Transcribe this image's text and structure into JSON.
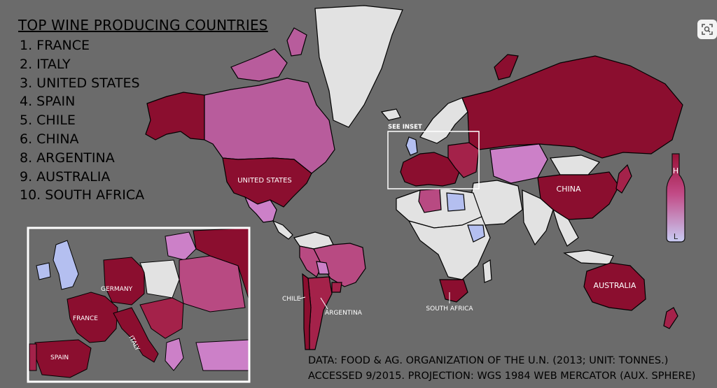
{
  "title": "TOP WINE PRODUCING COUNTRIES",
  "ranking": [
    "1. FRANCE",
    "2. ITALY",
    "3. UNITED STATES",
    "4. SPAIN",
    "5. CHILE",
    "6. CHINA",
    "8. ARGENTINA",
    "9. AUSTRALIA",
    "10. SOUTH AFRICA"
  ],
  "map_labels": {
    "united_states": "UNITED STATES",
    "china": "CHINA",
    "australia": "AUSTRALIA",
    "chile": "CHILE",
    "argentina": "ARGENTINA",
    "south_africa": "SOUTH AFRICA",
    "see_inset": "SEE INSET"
  },
  "inset_labels": {
    "germany": "GERMANY",
    "france": "FRANCE",
    "italy": "ITALY",
    "spain": "SPAIN"
  },
  "legend": {
    "high": "H",
    "low": "L"
  },
  "footer": {
    "line1": "DATA: FOOD & AG. ORGANIZATION OF THE U.N. (2013; UNIT: TONNES.)",
    "line2": "ACCESSED 9/2015. PROJECTION: WGS 1984 WEB MERCATOR (AUX. SPHERE)"
  },
  "colors": {
    "background": "#6b6b6b",
    "highest": "#8b0e2f",
    "high": "#a4224a",
    "mid": "#b84a82",
    "low": "#cc80c8",
    "lowest": "#b4bff0",
    "no_data": "#e2e2e2"
  }
}
